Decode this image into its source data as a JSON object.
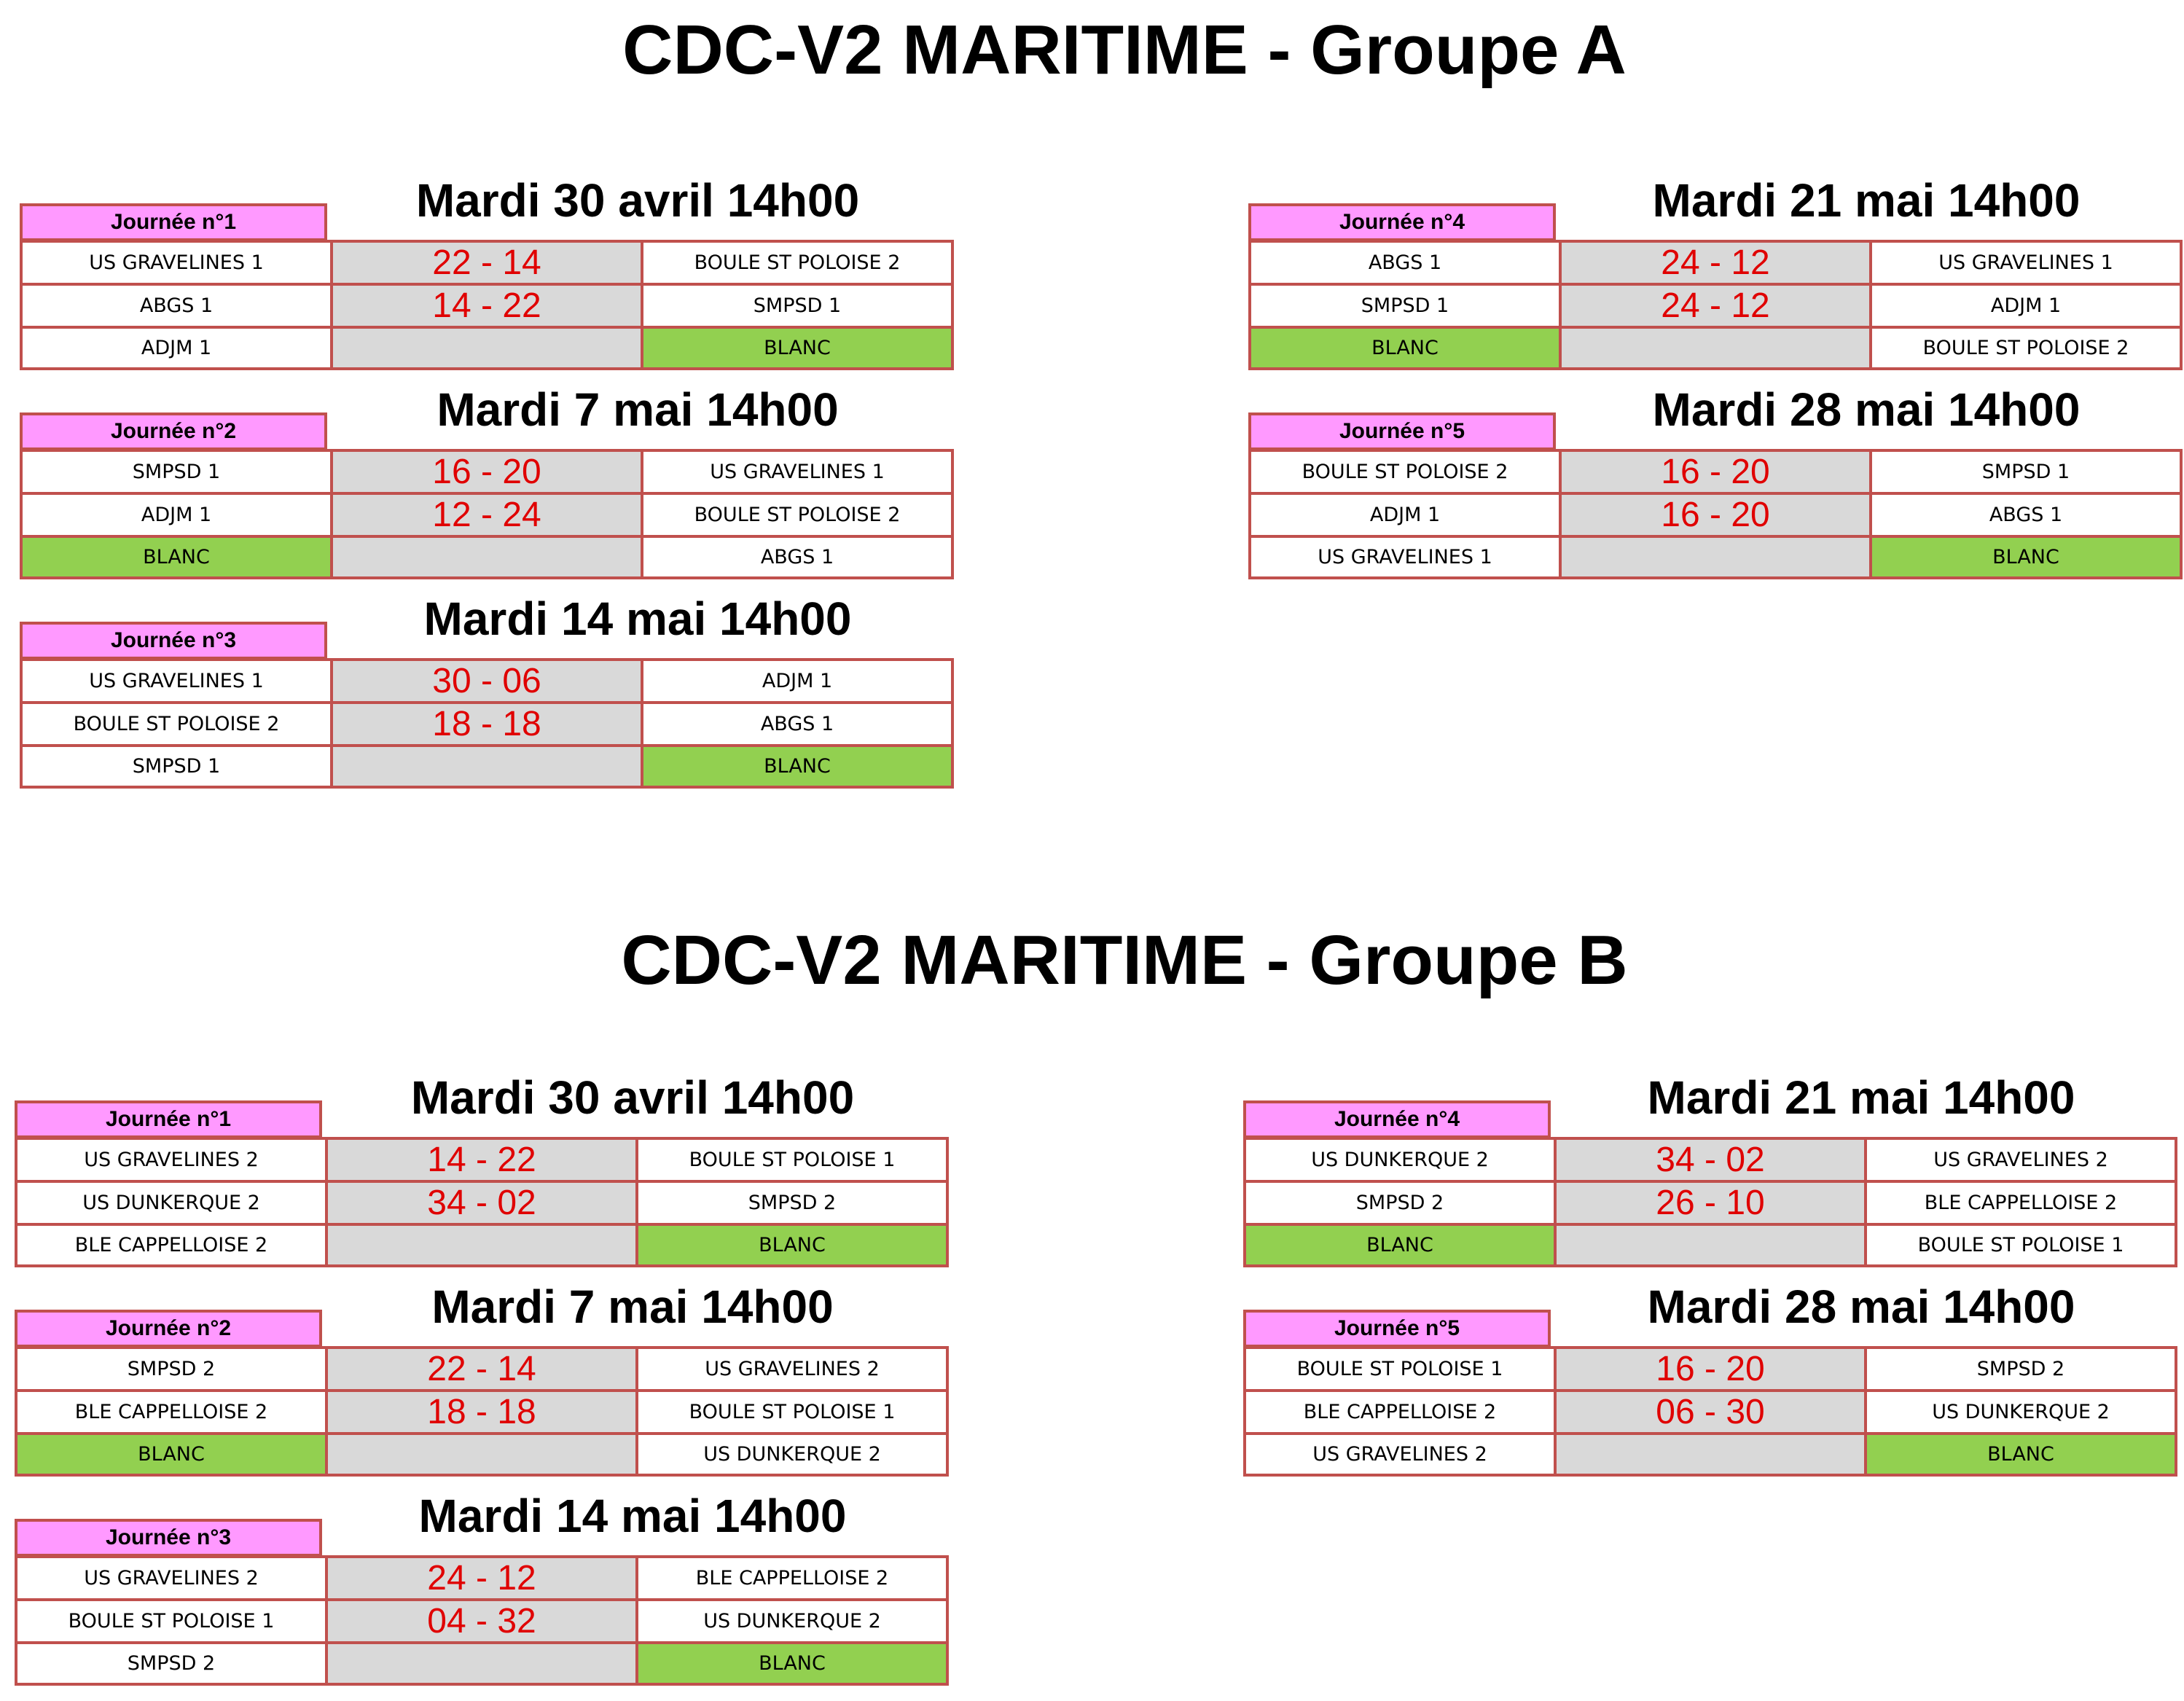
{
  "groups": [
    {
      "title": "CDC-V2 MARITIME - Groupe A",
      "rounds": [
        {
          "label": "Journée n°1",
          "date": "Mardi 30 avril 14h00",
          "rows": [
            {
              "home": "US GRAVELINES 1",
              "score": "22 - 14",
              "away": "BOULE ST POLOISE 2"
            },
            {
              "home": "ABGS 1",
              "score": "14 - 22",
              "away": "SMPSD 1"
            },
            {
              "home": "ADJM 1",
              "score": "",
              "away": "BLANC"
            }
          ]
        },
        {
          "label": "Journée n°2",
          "date": "Mardi 7 mai 14h00",
          "rows": [
            {
              "home": "SMPSD 1",
              "score": "16 - 20",
              "away": "US GRAVELINES 1"
            },
            {
              "home": "ADJM 1",
              "score": "12 - 24",
              "away": "BOULE ST POLOISE 2"
            },
            {
              "home": "BLANC",
              "score": "",
              "away": "ABGS 1"
            }
          ]
        },
        {
          "label": "Journée n°3",
          "date": "Mardi 14 mai 14h00",
          "rows": [
            {
              "home": "US GRAVELINES 1",
              "score": "30 - 06",
              "away": "ADJM 1"
            },
            {
              "home": "BOULE ST POLOISE 2",
              "score": "18 - 18",
              "away": "ABGS 1"
            },
            {
              "home": "SMPSD 1",
              "score": "",
              "away": "BLANC"
            }
          ]
        },
        {
          "label": "Journée n°4",
          "date": "Mardi 21 mai 14h00",
          "rows": [
            {
              "home": "ABGS 1",
              "score": "24 - 12",
              "away": "US GRAVELINES 1"
            },
            {
              "home": "SMPSD 1",
              "score": "24 - 12",
              "away": "ADJM 1"
            },
            {
              "home": "BLANC",
              "score": "",
              "away": "BOULE ST POLOISE 2"
            }
          ]
        },
        {
          "label": "Journée n°5",
          "date": "Mardi 28 mai 14h00",
          "rows": [
            {
              "home": "BOULE ST POLOISE 2",
              "score": "16 - 20",
              "away": "SMPSD 1"
            },
            {
              "home": "ADJM 1",
              "score": "16 - 20",
              "away": "ABGS 1"
            },
            {
              "home": "US GRAVELINES 1",
              "score": "",
              "away": "BLANC"
            }
          ]
        }
      ]
    },
    {
      "title": "CDC-V2 MARITIME - Groupe B",
      "rounds": [
        {
          "label": "Journée n°1",
          "date": "Mardi 30 avril 14h00",
          "rows": [
            {
              "home": "US GRAVELINES 2",
              "score": "14 - 22",
              "away": "BOULE ST POLOISE 1"
            },
            {
              "home": "US DUNKERQUE 2",
              "score": "34 - 02",
              "away": "SMPSD 2"
            },
            {
              "home": "BLE CAPPELLOISE 2",
              "score": "",
              "away": "BLANC"
            }
          ]
        },
        {
          "label": "Journée n°2",
          "date": "Mardi 7 mai 14h00",
          "rows": [
            {
              "home": "SMPSD 2",
              "score": "22 - 14",
              "away": "US GRAVELINES 2"
            },
            {
              "home": "BLE CAPPELLOISE 2",
              "score": "18 - 18",
              "away": "BOULE ST POLOISE 1"
            },
            {
              "home": "BLANC",
              "score": "",
              "away": "US DUNKERQUE 2"
            }
          ]
        },
        {
          "label": "Journée n°3",
          "date": "Mardi 14 mai 14h00",
          "rows": [
            {
              "home": "US GRAVELINES 2",
              "score": "24 - 12",
              "away": "BLE CAPPELLOISE 2"
            },
            {
              "home": "BOULE ST POLOISE 1",
              "score": "04 - 32",
              "away": "US DUNKERQUE 2"
            },
            {
              "home": "SMPSD 2",
              "score": "",
              "away": "BLANC"
            }
          ]
        },
        {
          "label": "Journée n°4",
          "date": "Mardi 21 mai 14h00",
          "rows": [
            {
              "home": "US DUNKERQUE 2",
              "score": "34 - 02",
              "away": "US GRAVELINES 2"
            },
            {
              "home": "SMPSD 2",
              "score": "26 - 10",
              "away": "BLE CAPPELLOISE 2"
            },
            {
              "home": "BLANC",
              "score": "",
              "away": "BOULE ST POLOISE 1"
            }
          ]
        },
        {
          "label": "Journée n°5",
          "date": "Mardi 28 mai 14h00",
          "rows": [
            {
              "home": "BOULE ST POLOISE 1",
              "score": "16 - 20",
              "away": "SMPSD 2"
            },
            {
              "home": "BLE CAPPELLOISE 2",
              "score": "06 - 30",
              "away": "US DUNKERQUE 2"
            },
            {
              "home": "US GRAVELINES 2",
              "score": "",
              "away": "BLANC"
            }
          ]
        }
      ]
    }
  ]
}
